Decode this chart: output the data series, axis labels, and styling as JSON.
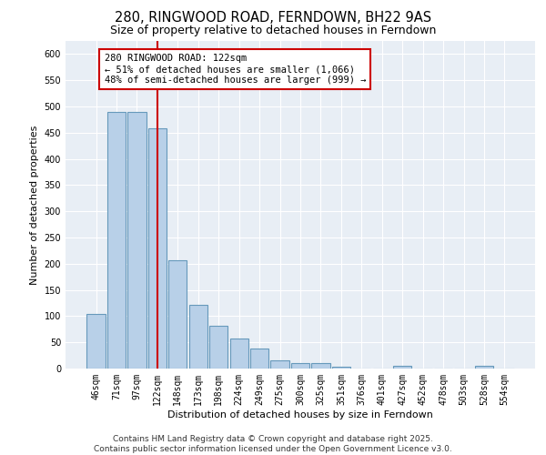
{
  "title": "280, RINGWOOD ROAD, FERNDOWN, BH22 9AS",
  "subtitle": "Size of property relative to detached houses in Ferndown",
  "xlabel": "Distribution of detached houses by size in Ferndown",
  "ylabel": "Number of detached properties",
  "categories": [
    "46sqm",
    "71sqm",
    "97sqm",
    "122sqm",
    "148sqm",
    "173sqm",
    "198sqm",
    "224sqm",
    "249sqm",
    "275sqm",
    "300sqm",
    "325sqm",
    "351sqm",
    "376sqm",
    "401sqm",
    "427sqm",
    "452sqm",
    "478sqm",
    "503sqm",
    "528sqm",
    "554sqm"
  ],
  "values": [
    105,
    490,
    490,
    458,
    207,
    122,
    82,
    57,
    39,
    15,
    11,
    11,
    3,
    0,
    0,
    6,
    0,
    0,
    0,
    6,
    0
  ],
  "bar_color": "#b8d0e8",
  "bar_edge_color": "#6699bb",
  "red_line_index": 3,
  "annotation_text": "280 RINGWOOD ROAD: 122sqm\n← 51% of detached houses are smaller (1,066)\n48% of semi-detached houses are larger (999) →",
  "annotation_box_color": "#ffffff",
  "annotation_border_color": "#cc0000",
  "ylim": [
    0,
    625
  ],
  "yticks": [
    0,
    50,
    100,
    150,
    200,
    250,
    300,
    350,
    400,
    450,
    500,
    550,
    600
  ],
  "bg_color": "#e8eef5",
  "footer_text": "Contains HM Land Registry data © Crown copyright and database right 2025.\nContains public sector information licensed under the Open Government Licence v3.0.",
  "title_fontsize": 10.5,
  "subtitle_fontsize": 9,
  "xlabel_fontsize": 8,
  "ylabel_fontsize": 8,
  "tick_fontsize": 7,
  "annotation_fontsize": 7.5,
  "footer_fontsize": 6.5
}
